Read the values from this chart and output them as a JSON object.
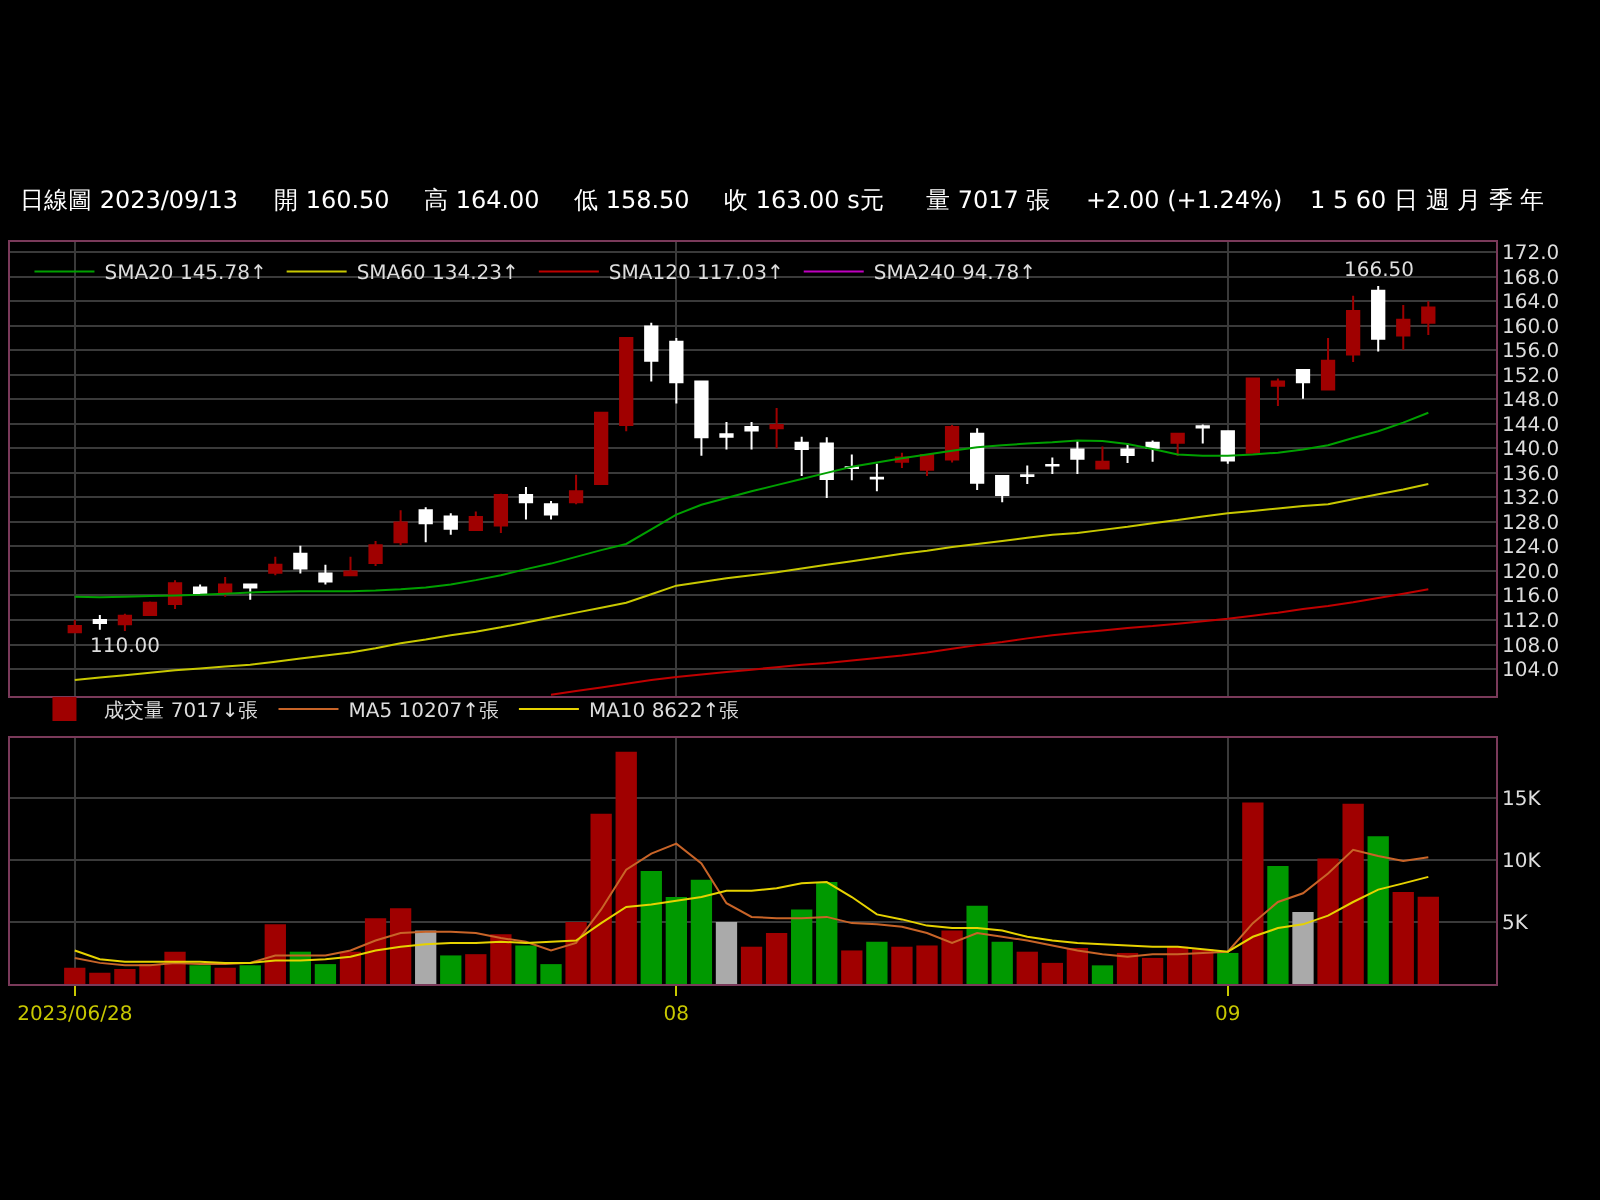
{
  "chart_data": [
    {
      "type": "candlestick",
      "annotations": [
        "日線圖 2023/09/13",
        "開 160.50",
        "高 164.00",
        "低 158.50",
        "收 163.00 s元",
        "量 7017 張",
        "+2.00 (+1.24%)",
        "1 5 60 日 週 月 季 年",
        {
          "text": "166.50",
          "y": 166.5
        },
        {
          "text": "110.00",
          "y": 110.0
        }
      ],
      "categories": [
        "2023/06/28",
        null,
        null,
        null,
        null,
        null,
        null,
        null,
        null,
        null,
        null,
        null,
        null,
        null,
        null,
        null,
        null,
        null,
        null,
        null,
        null,
        null,
        null,
        null,
        "08",
        null,
        null,
        null,
        null,
        null,
        null,
        null,
        null,
        null,
        null,
        null,
        null,
        null,
        null,
        null,
        null,
        null,
        null,
        null,
        null,
        null,
        "09",
        null,
        null,
        null,
        null,
        null,
        null,
        null,
        null
      ],
      "ohlc": [
        [
          110.0,
          112.0,
          110.0,
          111.0
        ],
        [
          112.0,
          112.8,
          110.4,
          111.5
        ],
        [
          111.3,
          113.0,
          110.2,
          112.7
        ],
        [
          112.8,
          115.0,
          112.8,
          114.8
        ],
        [
          114.6,
          118.5,
          113.8,
          118.0
        ],
        [
          117.3,
          117.8,
          116.3,
          116.3
        ],
        [
          116.5,
          119.0,
          115.8,
          117.8
        ],
        [
          117.8,
          117.8,
          115.3,
          117.3
        ],
        [
          119.7,
          122.3,
          119.3,
          121.0
        ],
        [
          122.8,
          124.1,
          119.6,
          120.4
        ],
        [
          119.6,
          121.0,
          117.8,
          118.3
        ],
        [
          119.3,
          122.3,
          119.3,
          119.9
        ],
        [
          121.3,
          124.9,
          120.8,
          124.2
        ],
        [
          124.7,
          129.9,
          124.2,
          127.9
        ],
        [
          129.9,
          130.4,
          124.7,
          127.8
        ],
        [
          128.9,
          129.4,
          125.9,
          126.9
        ],
        [
          126.7,
          129.7,
          126.7,
          128.8
        ],
        [
          127.4,
          132.6,
          126.2,
          132.4
        ],
        [
          132.4,
          133.7,
          128.4,
          131.2
        ],
        [
          130.9,
          131.4,
          128.4,
          129.2
        ],
        [
          131.2,
          135.7,
          130.9,
          133.0
        ],
        [
          134.2,
          145.8,
          134.2,
          145.8
        ],
        [
          143.8,
          158.0,
          142.8,
          158.0
        ],
        [
          159.9,
          160.5,
          150.9,
          154.3
        ],
        [
          157.4,
          158.0,
          147.3,
          150.8
        ],
        [
          150.9,
          150.9,
          138.8,
          141.8
        ],
        [
          142.3,
          144.3,
          139.8,
          141.9
        ],
        [
          143.5,
          144.3,
          139.8,
          142.9
        ],
        [
          143.3,
          146.6,
          140.0,
          143.8
        ],
        [
          140.9,
          141.9,
          135.5,
          139.9
        ],
        [
          140.8,
          141.8,
          131.9,
          135.0
        ],
        [
          136.9,
          139.0,
          134.8,
          136.8
        ],
        [
          135.2,
          137.5,
          133.0,
          135.1
        ],
        [
          137.8,
          139.3,
          136.8,
          138.5
        ],
        [
          136.5,
          138.9,
          135.5,
          138.9
        ],
        [
          138.2,
          143.8,
          137.7,
          143.5
        ],
        [
          142.4,
          143.3,
          133.2,
          134.4
        ],
        [
          135.5,
          135.5,
          131.2,
          132.4
        ],
        [
          135.6,
          137.2,
          134.2,
          135.5
        ],
        [
          137.3,
          138.5,
          135.8,
          137.2
        ],
        [
          139.8,
          141.3,
          135.8,
          138.3
        ],
        [
          136.7,
          140.3,
          136.7,
          137.8
        ],
        [
          139.8,
          140.8,
          137.6,
          138.9
        ],
        [
          140.9,
          141.3,
          137.8,
          140.1
        ],
        [
          140.9,
          142.4,
          138.8,
          142.4
        ],
        [
          143.6,
          143.9,
          140.8,
          143.4
        ],
        [
          142.8,
          142.8,
          137.5,
          138.0
        ],
        [
          139.3,
          151.4,
          139.3,
          151.4
        ],
        [
          150.2,
          151.4,
          146.9,
          150.9
        ],
        [
          152.8,
          152.8,
          148.1,
          150.8
        ],
        [
          149.6,
          158.0,
          149.6,
          154.3
        ],
        [
          155.3,
          164.9,
          154.1,
          162.4
        ],
        [
          165.7,
          166.5,
          155.8,
          157.9
        ],
        [
          158.4,
          163.4,
          156.1,
          161.0
        ],
        [
          160.5,
          164.0,
          158.5,
          163.0
        ]
      ],
      "colors": [
        "#a00000",
        "#ffffff",
        "#a00000",
        "#a00000",
        "#a00000",
        "#ffffff",
        "#a00000",
        "#ffffff",
        "#a00000",
        "#ffffff",
        "#ffffff",
        "#a00000",
        "#a00000",
        "#a00000",
        "#ffffff",
        "#ffffff",
        "#a00000",
        "#a00000",
        "#ffffff",
        "#ffffff",
        "#a00000",
        "#a00000",
        "#a00000",
        "#ffffff",
        "#ffffff",
        "#ffffff",
        "#ffffff",
        "#ffffff",
        "#a00000",
        "#ffffff",
        "#ffffff",
        "#ffffff",
        "#ffffff",
        "#a00000",
        "#a00000",
        "#a00000",
        "#ffffff",
        "#ffffff",
        "#ffffff",
        "#ffffff",
        "#ffffff",
        "#a00000",
        "#ffffff",
        "#ffffff",
        "#a00000",
        "#ffffff",
        "#ffffff",
        "#a00000",
        "#a00000",
        "#ffffff",
        "#a00000",
        "#a00000",
        "#ffffff",
        "#a00000",
        "#a00000"
      ],
      "series": [
        {
          "type": "line",
          "name": "SMA20 145.78↑",
          "color": "#00a000",
          "values": [
            115.8,
            115.7,
            115.8,
            115.9,
            116.0,
            116.1,
            116.3,
            116.5,
            116.6,
            116.7,
            116.7,
            116.7,
            116.8,
            117.0,
            117.3,
            117.8,
            118.5,
            119.3,
            120.3,
            121.2,
            122.3,
            123.4,
            124.4,
            126.8,
            129.2,
            130.8,
            131.9,
            133.0,
            134.0,
            135.0,
            136.0,
            137.0,
            137.7,
            138.4,
            139.0,
            139.6,
            140.2,
            140.5,
            140.8,
            141.0,
            141.3,
            141.2,
            140.7,
            139.9,
            139.0,
            138.8,
            138.8,
            139.0,
            139.3,
            139.8,
            140.5,
            141.7,
            142.8,
            144.2,
            145.8
          ]
        },
        {
          "type": "line",
          "name": "SMA60 134.23↑",
          "color": "#c8c800",
          "values": [
            102.2,
            102.6,
            103.0,
            103.4,
            103.8,
            104.1,
            104.4,
            104.7,
            105.2,
            105.7,
            106.2,
            106.7,
            107.4,
            108.2,
            108.8,
            109.5,
            110.1,
            110.8,
            111.6,
            112.4,
            113.2,
            114.0,
            114.8,
            116.2,
            117.6,
            118.2,
            118.8,
            119.3,
            119.8,
            120.4,
            121.0,
            121.6,
            122.2,
            122.8,
            123.3,
            123.9,
            124.4,
            124.9,
            125.4,
            125.9,
            126.2,
            126.7,
            127.2,
            127.8,
            128.3,
            128.9,
            129.4,
            129.8,
            130.2,
            130.6,
            130.9,
            131.7,
            132.5,
            133.3,
            134.2
          ]
        },
        {
          "type": "line",
          "name": "SMA120 117.03↑",
          "color": "#c00000",
          "values": [
            null,
            null,
            null,
            null,
            null,
            null,
            null,
            null,
            null,
            null,
            null,
            null,
            null,
            null,
            null,
            null,
            null,
            null,
            null,
            99.8,
            100.4,
            101.0,
            101.6,
            102.2,
            102.7,
            103.1,
            103.5,
            103.9,
            104.3,
            104.7,
            105.0,
            105.4,
            105.8,
            106.2,
            106.7,
            107.3,
            107.9,
            108.4,
            109.0,
            109.5,
            109.9,
            110.3,
            110.7,
            111.0,
            111.4,
            111.8,
            112.2,
            112.7,
            113.2,
            113.8,
            114.3,
            114.9,
            115.6,
            116.3,
            117.0
          ]
        },
        {
          "type": "line",
          "name": "SMA240 94.78↑",
          "color": "#c000c0",
          "values": [
            null,
            null,
            null,
            null,
            null,
            null,
            null,
            null,
            null,
            null,
            null,
            null,
            null,
            null,
            null,
            null,
            null,
            null,
            null,
            null,
            null,
            null,
            null,
            null,
            null,
            null,
            null,
            null,
            null,
            null,
            null,
            null,
            null,
            null,
            null,
            null,
            null,
            null,
            null,
            null,
            null,
            null,
            null,
            null,
            null,
            null,
            null,
            null,
            null,
            null,
            null,
            null,
            null,
            null,
            null
          ]
        }
      ],
      "ylim": [
        99.6,
        173.6
      ],
      "yticks": [
        {
          "value": 104,
          "label": "104.0"
        },
        {
          "value": 108,
          "label": "108.0"
        },
        {
          "value": 112,
          "label": "112.0"
        },
        {
          "value": 116,
          "label": "116.0"
        },
        {
          "value": 120,
          "label": "120.0"
        },
        {
          "value": 124,
          "label": "124.0"
        },
        {
          "value": 128,
          "label": "128.0"
        },
        {
          "value": 132,
          "label": "132.0"
        },
        {
          "value": 136,
          "label": "136.0"
        },
        {
          "value": 140,
          "label": "140.0"
        },
        {
          "value": 144,
          "label": "144.0"
        },
        {
          "value": 148,
          "label": "148.0"
        },
        {
          "value": 152,
          "label": "152.0"
        },
        {
          "value": 156,
          "label": "156.0"
        },
        {
          "value": 160,
          "label": "160.0"
        },
        {
          "value": 164,
          "label": "164.0"
        },
        {
          "value": 168,
          "label": "168.0"
        },
        {
          "value": 172,
          "label": "172.0"
        }
      ],
      "grid": true,
      "legend": "top left",
      "tick_labels": "y"
    },
    {
      "type": "bar",
      "categories": [
        "2023/06/28",
        null,
        null,
        null,
        null,
        null,
        null,
        null,
        null,
        null,
        null,
        null,
        null,
        null,
        null,
        null,
        null,
        null,
        null,
        null,
        null,
        null,
        null,
        null,
        "08",
        null,
        null,
        null,
        null,
        null,
        null,
        null,
        null,
        null,
        null,
        null,
        null,
        null,
        null,
        null,
        null,
        null,
        null,
        null,
        null,
        null,
        "09",
        null,
        null,
        null,
        null,
        null,
        null,
        null,
        null
      ],
      "series": [
        {
          "type": "bar",
          "name": "成交量 7017↓張",
          "colors": [
            "#a00000",
            "#a00000",
            "#a00000",
            "#a00000",
            "#a00000",
            "#009900",
            "#a00000",
            "#009900",
            "#a00000",
            "#009900",
            "#009900",
            "#a00000",
            "#a00000",
            "#a00000",
            "#aaaaaa",
            "#009900",
            "#a00000",
            "#a00000",
            "#009900",
            "#009900",
            "#a00000",
            "#a00000",
            "#a00000",
            "#009900",
            "#009900",
            "#009900",
            "#aaaaaa",
            "#a00000",
            "#a00000",
            "#009900",
            "#009900",
            "#a00000",
            "#009900",
            "#a00000",
            "#a00000",
            "#a00000",
            "#009900",
            "#009900",
            "#a00000",
            "#a00000",
            "#a00000",
            "#009900",
            "#a00000",
            "#a00000",
            "#a00000",
            "#a00000",
            "#009900",
            "#a00000",
            "#009900",
            "#aaaaaa",
            "#a00000",
            "#a00000",
            "#009900",
            "#a00000",
            "#a00000"
          ],
          "values": [
            1300,
            900,
            1200,
            1600,
            2600,
            1500,
            1300,
            1500,
            4800,
            2600,
            1600,
            2600,
            5300,
            6100,
            4300,
            2300,
            2400,
            4000,
            3100,
            1600,
            5000,
            13700,
            18700,
            9100,
            7000,
            8400,
            5000,
            3000,
            4100,
            6000,
            8200,
            2700,
            3400,
            3000,
            3100,
            4300,
            6300,
            3400,
            2600,
            1700,
            2900,
            1500,
            2500,
            2100,
            3000,
            2800,
            2500,
            14600,
            9500,
            5800,
            10100,
            14500,
            11900,
            7400,
            7017
          ]
        },
        {
          "type": "line",
          "name": "MA5 10207↑張",
          "color": "#c86428",
          "values": [
            2100,
            1700,
            1500,
            1500,
            1700,
            1600,
            1600,
            1700,
            2300,
            2300,
            2300,
            2700,
            3500,
            4100,
            4200,
            4200,
            4100,
            3700,
            3400,
            2700,
            3300,
            6000,
            9200,
            10500,
            11300,
            9700,
            6500,
            5400,
            5300,
            5300,
            5400,
            4900,
            4800,
            4600,
            4100,
            3300,
            4100,
            3800,
            3500,
            3100,
            2700,
            2400,
            2200,
            2400,
            2400,
            2500,
            2600,
            4900,
            6600,
            7300,
            8900,
            10800,
            10300,
            9900,
            10207
          ]
        },
        {
          "type": "line",
          "name": "MA10 8622↑張",
          "color": "#e6d200",
          "values": [
            2700,
            2000,
            1800,
            1800,
            1800,
            1800,
            1700,
            1700,
            1900,
            1900,
            2000,
            2200,
            2700,
            3000,
            3200,
            3300,
            3300,
            3400,
            3300,
            3400,
            3500,
            4900,
            6200,
            6400,
            6700,
            7000,
            7500,
            7500,
            7700,
            8100,
            8200,
            7000,
            5600,
            5200,
            4700,
            4500,
            4500,
            4300,
            3800,
            3500,
            3300,
            3200,
            3100,
            3000,
            3000,
            2800,
            2600,
            3800,
            4500,
            4800,
            5500,
            6600,
            7600,
            8100,
            8622
          ]
        }
      ],
      "ylim": [
        0,
        19800
      ],
      "yticks": [
        {
          "value": 5000,
          "label": "5K"
        },
        {
          "value": 10000,
          "label": "10K"
        },
        {
          "value": 15000,
          "label": "15K"
        }
      ],
      "grid": true,
      "legend": "top left"
    }
  ]
}
